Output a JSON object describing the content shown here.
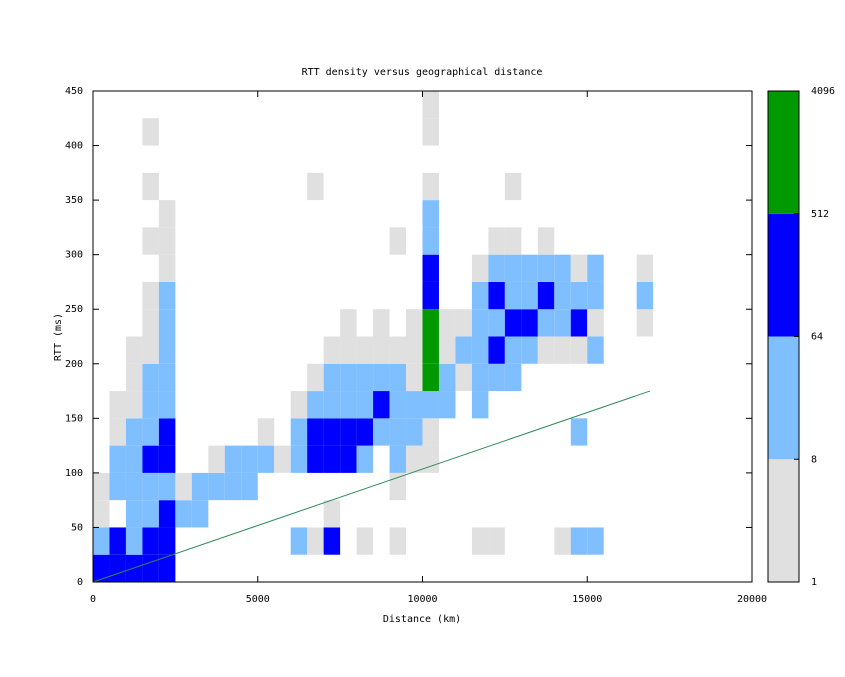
{
  "chart_data": {
    "type": "heatmap",
    "title": "RTT density versus geographical distance",
    "x_label": "Distance (km)",
    "y_label": "RTT (ms)",
    "xlim": [
      0,
      20000
    ],
    "xticks": [
      0,
      5000,
      10000,
      15000,
      20000
    ],
    "ylim": [
      0,
      450
    ],
    "yticks": [
      0,
      50,
      100,
      150,
      200,
      250,
      300,
      350,
      400,
      450
    ],
    "bin_size": [
      500,
      25
    ],
    "colorbar": {
      "log_scale": true,
      "ticks": [
        1,
        8,
        64,
        512,
        4096
      ],
      "colors": [
        "#e0e0e0",
        "#80bfff",
        "#0000ff",
        "#009900"
      ]
    },
    "reference_line": {
      "color": "#2e8b57",
      "x": [
        0,
        16900
      ],
      "y": [
        0,
        175
      ]
    },
    "cells": [
      [
        0,
        0,
        150
      ],
      [
        0,
        25,
        20
      ],
      [
        0,
        50,
        2
      ],
      [
        0,
        75,
        2
      ],
      [
        500,
        0,
        150
      ],
      [
        500,
        25,
        150
      ],
      [
        500,
        75,
        20
      ],
      [
        500,
        100,
        20
      ],
      [
        500,
        125,
        2
      ],
      [
        500,
        150,
        2
      ],
      [
        1000,
        0,
        150
      ],
      [
        1000,
        25,
        20
      ],
      [
        1000,
        50,
        20
      ],
      [
        1000,
        75,
        20
      ],
      [
        1000,
        100,
        20
      ],
      [
        1000,
        125,
        20
      ],
      [
        1000,
        150,
        2
      ],
      [
        1000,
        175,
        2
      ],
      [
        1000,
        200,
        2
      ],
      [
        1500,
        0,
        150
      ],
      [
        1500,
        25,
        150
      ],
      [
        1500,
        50,
        20
      ],
      [
        1500,
        75,
        20
      ],
      [
        1500,
        100,
        150
      ],
      [
        1500,
        125,
        20
      ],
      [
        1500,
        150,
        20
      ],
      [
        1500,
        175,
        20
      ],
      [
        1500,
        200,
        2
      ],
      [
        1500,
        225,
        2
      ],
      [
        1500,
        250,
        2
      ],
      [
        1500,
        300,
        2
      ],
      [
        1500,
        350,
        2
      ],
      [
        1500,
        400,
        2
      ],
      [
        2000,
        0,
        150
      ],
      [
        2000,
        25,
        150
      ],
      [
        2000,
        50,
        150
      ],
      [
        2000,
        75,
        20
      ],
      [
        2000,
        100,
        150
      ],
      [
        2000,
        125,
        150
      ],
      [
        2000,
        150,
        20
      ],
      [
        2000,
        175,
        20
      ],
      [
        2000,
        200,
        20
      ],
      [
        2000,
        225,
        20
      ],
      [
        2000,
        250,
        20
      ],
      [
        2000,
        275,
        2
      ],
      [
        2000,
        300,
        2
      ],
      [
        2000,
        325,
        2
      ],
      [
        2500,
        50,
        20
      ],
      [
        2500,
        75,
        2
      ],
      [
        3000,
        50,
        20
      ],
      [
        3000,
        75,
        20
      ],
      [
        3500,
        75,
        20
      ],
      [
        3500,
        100,
        2
      ],
      [
        4000,
        75,
        20
      ],
      [
        4000,
        100,
        20
      ],
      [
        4500,
        75,
        20
      ],
      [
        4500,
        100,
        20
      ],
      [
        5000,
        100,
        20
      ],
      [
        5000,
        125,
        2
      ],
      [
        5500,
        100,
        2
      ],
      [
        6000,
        25,
        20
      ],
      [
        6000,
        100,
        20
      ],
      [
        6000,
        125,
        20
      ],
      [
        6000,
        150,
        2
      ],
      [
        6500,
        25,
        2
      ],
      [
        6500,
        100,
        150
      ],
      [
        6500,
        125,
        150
      ],
      [
        6500,
        150,
        20
      ],
      [
        6500,
        175,
        2
      ],
      [
        6500,
        350,
        2
      ],
      [
        7000,
        25,
        150
      ],
      [
        7000,
        50,
        2
      ],
      [
        7000,
        100,
        150
      ],
      [
        7000,
        125,
        150
      ],
      [
        7000,
        150,
        20
      ],
      [
        7000,
        175,
        20
      ],
      [
        7000,
        200,
        2
      ],
      [
        7500,
        100,
        150
      ],
      [
        7500,
        125,
        150
      ],
      [
        7500,
        150,
        20
      ],
      [
        7500,
        175,
        20
      ],
      [
        7500,
        200,
        2
      ],
      [
        7500,
        225,
        2
      ],
      [
        8000,
        25,
        2
      ],
      [
        8000,
        100,
        20
      ],
      [
        8000,
        125,
        150
      ],
      [
        8000,
        150,
        20
      ],
      [
        8000,
        175,
        20
      ],
      [
        8000,
        200,
        2
      ],
      [
        8500,
        125,
        20
      ],
      [
        8500,
        150,
        150
      ],
      [
        8500,
        175,
        20
      ],
      [
        8500,
        200,
        2
      ],
      [
        8500,
        225,
        2
      ],
      [
        9000,
        25,
        2
      ],
      [
        9000,
        75,
        2
      ],
      [
        9000,
        100,
        20
      ],
      [
        9000,
        125,
        20
      ],
      [
        9000,
        150,
        20
      ],
      [
        9000,
        175,
        20
      ],
      [
        9000,
        200,
        2
      ],
      [
        9000,
        300,
        2
      ],
      [
        9500,
        100,
        2
      ],
      [
        9500,
        125,
        20
      ],
      [
        9500,
        150,
        20
      ],
      [
        9500,
        175,
        2
      ],
      [
        9500,
        200,
        2
      ],
      [
        9500,
        225,
        2
      ],
      [
        10000,
        100,
        2
      ],
      [
        10000,
        125,
        2
      ],
      [
        10000,
        150,
        20
      ],
      [
        10000,
        175,
        1000
      ],
      [
        10000,
        200,
        1000
      ],
      [
        10000,
        225,
        1000
      ],
      [
        10000,
        250,
        150
      ],
      [
        10000,
        275,
        150
      ],
      [
        10000,
        300,
        20
      ],
      [
        10000,
        325,
        20
      ],
      [
        10000,
        350,
        2
      ],
      [
        10000,
        400,
        2
      ],
      [
        10000,
        425,
        2
      ],
      [
        10500,
        150,
        20
      ],
      [
        10500,
        175,
        20
      ],
      [
        10500,
        200,
        2
      ],
      [
        10500,
        225,
        2
      ],
      [
        11000,
        175,
        2
      ],
      [
        11000,
        200,
        20
      ],
      [
        11000,
        225,
        2
      ],
      [
        11500,
        25,
        2
      ],
      [
        11500,
        150,
        20
      ],
      [
        11500,
        175,
        20
      ],
      [
        11500,
        200,
        20
      ],
      [
        11500,
        225,
        20
      ],
      [
        11500,
        250,
        20
      ],
      [
        11500,
        275,
        2
      ],
      [
        12000,
        25,
        2
      ],
      [
        12000,
        175,
        20
      ],
      [
        12000,
        200,
        150
      ],
      [
        12000,
        225,
        20
      ],
      [
        12000,
        250,
        150
      ],
      [
        12000,
        275,
        20
      ],
      [
        12000,
        300,
        2
      ],
      [
        12500,
        175,
        20
      ],
      [
        12500,
        200,
        20
      ],
      [
        12500,
        225,
        150
      ],
      [
        12500,
        250,
        20
      ],
      [
        12500,
        275,
        20
      ],
      [
        12500,
        300,
        2
      ],
      [
        12500,
        350,
        2
      ],
      [
        13000,
        200,
        20
      ],
      [
        13000,
        225,
        150
      ],
      [
        13000,
        250,
        20
      ],
      [
        13000,
        275,
        20
      ],
      [
        13500,
        200,
        2
      ],
      [
        13500,
        225,
        20
      ],
      [
        13500,
        250,
        150
      ],
      [
        13500,
        275,
        20
      ],
      [
        13500,
        300,
        2
      ],
      [
        14000,
        25,
        2
      ],
      [
        14000,
        200,
        2
      ],
      [
        14000,
        225,
        20
      ],
      [
        14000,
        250,
        20
      ],
      [
        14000,
        275,
        20
      ],
      [
        14500,
        25,
        20
      ],
      [
        14500,
        125,
        20
      ],
      [
        14500,
        200,
        2
      ],
      [
        14500,
        225,
        150
      ],
      [
        14500,
        250,
        20
      ],
      [
        14500,
        275,
        2
      ],
      [
        15000,
        25,
        20
      ],
      [
        15000,
        200,
        20
      ],
      [
        15000,
        225,
        2
      ],
      [
        15000,
        250,
        20
      ],
      [
        15000,
        275,
        20
      ],
      [
        16500,
        225,
        2
      ],
      [
        16500,
        250,
        20
      ],
      [
        16500,
        275,
        2
      ]
    ]
  }
}
